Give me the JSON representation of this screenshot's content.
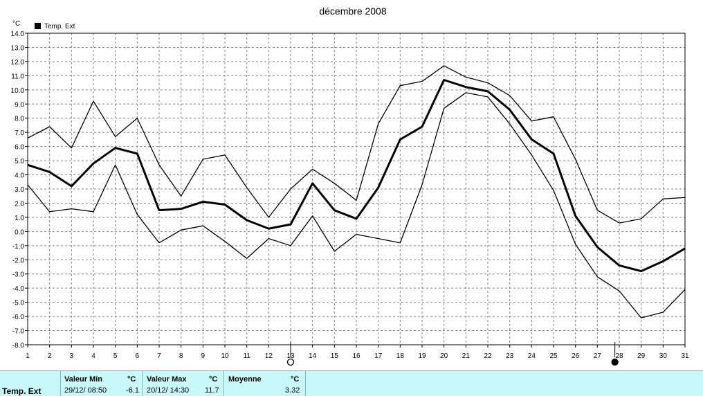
{
  "chart_data": {
    "type": "line",
    "title": "décembre 2008",
    "yunit": "°C",
    "legend": "Temp. Ext",
    "ylim": [
      -8,
      14
    ],
    "yticks": [
      "14.0",
      "13.0",
      "12.0",
      "11.0",
      "10.0",
      "9.0",
      "8.0",
      "7.0",
      "6.0",
      "5.0",
      "4.0",
      "3.0",
      "2.0",
      "1.0",
      "0.0",
      "-1.0",
      "-2.0",
      "-3.0",
      "-4.0",
      "-5.0",
      "-6.0",
      "-7.0",
      "-8.0"
    ],
    "x": [
      1,
      2,
      3,
      4,
      5,
      6,
      7,
      8,
      9,
      10,
      11,
      12,
      13,
      14,
      15,
      16,
      17,
      18,
      19,
      20,
      21,
      22,
      23,
      24,
      25,
      26,
      27,
      28,
      29,
      30,
      31
    ],
    "series": [
      {
        "name": "max",
        "values": [
          6.6,
          7.4,
          5.9,
          9.2,
          6.7,
          8.0,
          4.7,
          2.5,
          5.1,
          5.4,
          3.1,
          1.0,
          3.0,
          4.4,
          3.4,
          2.2,
          7.6,
          10.3,
          10.6,
          11.7,
          10.9,
          10.5,
          9.6,
          7.8,
          8.1,
          5.1,
          1.5,
          0.6,
          0.9,
          2.3,
          2.4
        ]
      },
      {
        "name": "moyenne",
        "values": [
          4.7,
          4.2,
          3.2,
          4.8,
          5.9,
          5.5,
          1.5,
          1.6,
          2.1,
          1.9,
          0.8,
          0.2,
          0.5,
          3.4,
          1.5,
          0.9,
          3.1,
          6.5,
          7.4,
          10.7,
          10.2,
          9.9,
          8.6,
          6.5,
          5.5,
          1.1,
          -1.1,
          -2.4,
          -2.8,
          -2.1,
          -1.2
        ]
      },
      {
        "name": "min",
        "values": [
          3.3,
          1.4,
          1.6,
          1.4,
          4.7,
          1.2,
          -0.8,
          0.1,
          0.4,
          -0.7,
          -1.9,
          -0.5,
          -1.0,
          1.1,
          -1.4,
          -0.2,
          -0.5,
          -0.8,
          3.3,
          8.7,
          9.8,
          9.5,
          7.6,
          5.4,
          2.9,
          -0.9,
          -3.2,
          -4.2,
          -6.1,
          -5.7,
          -4.1
        ]
      }
    ],
    "markers": [
      {
        "x": 13,
        "symbol": "empty-circle"
      },
      {
        "x": 27.8,
        "symbol": "filled-circle"
      }
    ],
    "grid": true
  },
  "footer": {
    "name": "Temp. Ext",
    "min_label": "Valeur Min",
    "min_unit": "°C",
    "min_date": "29/12/  08:50",
    "min_value": "-6.1",
    "max_label": "Valeur Max",
    "max_unit": "°C",
    "max_date": "20/12/  14:30",
    "max_value": "11.7",
    "avg_label": "Moyenne",
    "avg_unit": "°C",
    "avg_value": "3.32"
  }
}
